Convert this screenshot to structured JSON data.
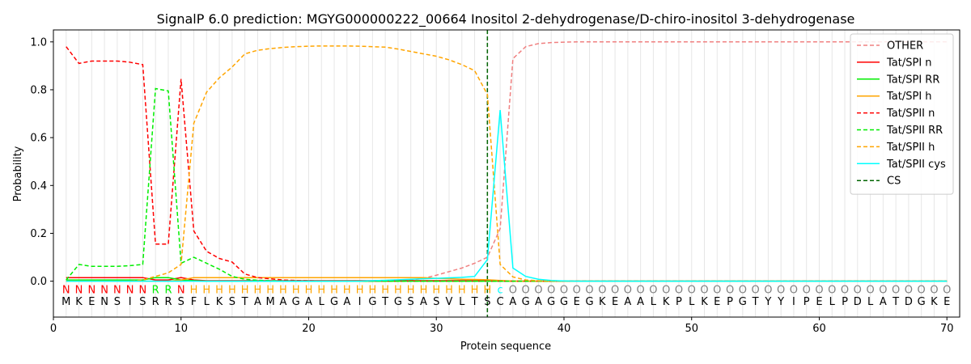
{
  "chart_data": {
    "type": "line",
    "title": "SignalP 6.0 prediction: MGYG000000222_00664 Inositol 2-dehydrogenase/D-chiro-inositol 3-dehydrogenase",
    "xlabel": "Protein sequence",
    "ylabel": "Probability",
    "xlim": [
      0,
      71
    ],
    "ylim": [
      -0.15,
      1.05
    ],
    "xticks": [
      0,
      10,
      20,
      30,
      40,
      50,
      60,
      70
    ],
    "yticks": [
      0.0,
      0.2,
      0.4,
      0.6,
      0.8,
      1.0
    ],
    "grid": "vertical lines at each residue",
    "legend_position": "top-right",
    "sequence": [
      "M",
      "K",
      "E",
      "N",
      "S",
      "I",
      "S",
      "R",
      "R",
      "S",
      "F",
      "L",
      "K",
      "S",
      "T",
      "A",
      "M",
      "A",
      "G",
      "A",
      "L",
      "G",
      "A",
      "I",
      "G",
      "T",
      "G",
      "S",
      "A",
      "S",
      "V",
      "L",
      "T",
      "S",
      "C",
      "A",
      "G",
      "A",
      "G",
      "G",
      "E",
      "G",
      "K",
      "E",
      "A",
      "A",
      "L",
      "K",
      "P",
      "L",
      "K",
      "E",
      "P",
      "G",
      "T",
      "Y",
      "Y",
      "I",
      "P",
      "E",
      "L",
      "P",
      "D",
      "L",
      "A",
      "T",
      "D",
      "G",
      "K",
      "E"
    ],
    "labels": [
      "N",
      "N",
      "N",
      "N",
      "N",
      "N",
      "N",
      "R",
      "R",
      "N",
      "H",
      "H",
      "H",
      "H",
      "H",
      "H",
      "H",
      "H",
      "H",
      "H",
      "H",
      "H",
      "H",
      "H",
      "H",
      "H",
      "H",
      "H",
      "H",
      "H",
      "H",
      "H",
      "H",
      "H",
      "c",
      "O",
      "O",
      "O",
      "O",
      "O",
      "O",
      "O",
      "O",
      "O",
      "O",
      "O",
      "O",
      "O",
      "O",
      "O",
      "O",
      "O",
      "O",
      "O",
      "O",
      "O",
      "O",
      "O",
      "O",
      "O",
      "O",
      "O",
      "O",
      "O",
      "O",
      "O",
      "O",
      "O",
      "O",
      "O"
    ],
    "label_colors": {
      "N": "#ff0000",
      "R": "#00ee00",
      "H": "#ffa500",
      "c": "#00ffff",
      "O": "#808080"
    },
    "cs_position": 34,
    "series": [
      {
        "name": "OTHER",
        "color": "#f08080",
        "dash": "dashed",
        "values": [
          0.0,
          0.0,
          0.0,
          0.0,
          0.0,
          0.0,
          0.0,
          0.0,
          0.0,
          0.0,
          0.0,
          0.0,
          0.0,
          0.0,
          0.0,
          0.0,
          0.0,
          0.0,
          0.0,
          0.0,
          0.0,
          0.0,
          0.0,
          0.0,
          0.0,
          0.0,
          0.002,
          0.005,
          0.012,
          0.025,
          0.04,
          0.055,
          0.075,
          0.1,
          0.22,
          0.93,
          0.98,
          0.993,
          0.997,
          0.999,
          1.0,
          1.0,
          1.0,
          1.0,
          1.0,
          1.0,
          1.0,
          1.0,
          1.0,
          1.0,
          1.0,
          1.0,
          1.0,
          1.0,
          1.0,
          1.0,
          1.0,
          1.0,
          1.0,
          1.0,
          1.0,
          1.0,
          1.0,
          1.0,
          1.0,
          1.0,
          1.0,
          1.0,
          1.0,
          1.0
        ]
      },
      {
        "name": "Tat/SPI n",
        "color": "#ff0000",
        "dash": "solid",
        "values": [
          0.015,
          0.015,
          0.015,
          0.015,
          0.015,
          0.015,
          0.015,
          0.005,
          0.005,
          0.015,
          0.005,
          0.002,
          0.002,
          0.002,
          0.002,
          0.002,
          0.002,
          0.002,
          0.002,
          0.002,
          0.002,
          0.002,
          0.002,
          0.002,
          0.002,
          0.002,
          0.002,
          0.002,
          0.002,
          0.002,
          0.002,
          0.002,
          0.002,
          0.002,
          0.002,
          0.0,
          0.0,
          0.0,
          0.0,
          0.0,
          0.0,
          0.0,
          0.0,
          0.0,
          0.0,
          0.0,
          0.0,
          0.0,
          0.0,
          0.0,
          0.0,
          0.0,
          0.0,
          0.0,
          0.0,
          0.0,
          0.0,
          0.0,
          0.0,
          0.0,
          0.0,
          0.0,
          0.0,
          0.0,
          0.0,
          0.0,
          0.0,
          0.0,
          0.0,
          0.0
        ]
      },
      {
        "name": "Tat/SPI RR",
        "color": "#00ee00",
        "dash": "solid",
        "values": [
          0.005,
          0.005,
          0.005,
          0.005,
          0.005,
          0.005,
          0.005,
          0.015,
          0.015,
          0.005,
          0.002,
          0.0,
          0.0,
          0.0,
          0.0,
          0.0,
          0.0,
          0.0,
          0.0,
          0.0,
          0.0,
          0.0,
          0.0,
          0.0,
          0.0,
          0.0,
          0.0,
          0.0,
          0.0,
          0.0,
          0.0,
          0.0,
          0.0,
          0.0,
          0.0,
          0.0,
          0.0,
          0.0,
          0.0,
          0.0,
          0.0,
          0.0,
          0.0,
          0.0,
          0.0,
          0.0,
          0.0,
          0.0,
          0.0,
          0.0,
          0.0,
          0.0,
          0.0,
          0.0,
          0.0,
          0.0,
          0.0,
          0.0,
          0.0,
          0.0,
          0.0,
          0.0,
          0.0,
          0.0,
          0.0,
          0.0,
          0.0,
          0.0,
          0.0,
          0.0
        ]
      },
      {
        "name": "Tat/SPI h",
        "color": "#ffa500",
        "dash": "solid",
        "values": [
          0.0,
          0.0,
          0.0,
          0.0,
          0.0,
          0.0,
          0.0,
          0.0,
          0.0,
          0.005,
          0.015,
          0.015,
          0.015,
          0.015,
          0.015,
          0.015,
          0.015,
          0.015,
          0.015,
          0.015,
          0.015,
          0.015,
          0.015,
          0.015,
          0.015,
          0.015,
          0.015,
          0.015,
          0.015,
          0.012,
          0.01,
          0.008,
          0.007,
          0.006,
          0.003,
          0.0,
          0.0,
          0.0,
          0.0,
          0.0,
          0.0,
          0.0,
          0.0,
          0.0,
          0.0,
          0.0,
          0.0,
          0.0,
          0.0,
          0.0,
          0.0,
          0.0,
          0.0,
          0.0,
          0.0,
          0.0,
          0.0,
          0.0,
          0.0,
          0.0,
          0.0,
          0.0,
          0.0,
          0.0,
          0.0,
          0.0,
          0.0,
          0.0,
          0.0,
          0.0
        ]
      },
      {
        "name": "Tat/SPII n",
        "color": "#ff0000",
        "dash": "dashed",
        "values": [
          0.98,
          0.91,
          0.92,
          0.92,
          0.92,
          0.915,
          0.905,
          0.155,
          0.155,
          0.845,
          0.21,
          0.125,
          0.095,
          0.08,
          0.03,
          0.015,
          0.01,
          0.005,
          0.003,
          0.002,
          0.001,
          0.0,
          0.0,
          0.0,
          0.0,
          0.0,
          0.0,
          0.0,
          0.0,
          0.0,
          0.0,
          0.0,
          0.0,
          0.0,
          0.0,
          0.0,
          0.0,
          0.0,
          0.0,
          0.0,
          0.0,
          0.0,
          0.0,
          0.0,
          0.0,
          0.0,
          0.0,
          0.0,
          0.0,
          0.0,
          0.0,
          0.0,
          0.0,
          0.0,
          0.0,
          0.0,
          0.0,
          0.0,
          0.0,
          0.0,
          0.0,
          0.0,
          0.0,
          0.0,
          0.0,
          0.0,
          0.0,
          0.0,
          0.0,
          0.0
        ]
      },
      {
        "name": "Tat/SPII RR",
        "color": "#00ee00",
        "dash": "dashed",
        "values": [
          0.005,
          0.07,
          0.062,
          0.062,
          0.062,
          0.065,
          0.07,
          0.805,
          0.795,
          0.075,
          0.1,
          0.075,
          0.05,
          0.02,
          0.008,
          0.004,
          0.002,
          0.001,
          0.0,
          0.0,
          0.0,
          0.0,
          0.0,
          0.0,
          0.0,
          0.0,
          0.0,
          0.0,
          0.0,
          0.0,
          0.0,
          0.0,
          0.0,
          0.0,
          0.0,
          0.0,
          0.0,
          0.0,
          0.0,
          0.0,
          0.0,
          0.0,
          0.0,
          0.0,
          0.0,
          0.0,
          0.0,
          0.0,
          0.0,
          0.0,
          0.0,
          0.0,
          0.0,
          0.0,
          0.0,
          0.0,
          0.0,
          0.0,
          0.0,
          0.0,
          0.0,
          0.0,
          0.0,
          0.0,
          0.0,
          0.0,
          0.0,
          0.0,
          0.0,
          0.0
        ]
      },
      {
        "name": "Tat/SPII h",
        "color": "#ffa500",
        "dash": "dashed",
        "values": [
          0.0,
          0.0,
          0.0,
          0.0,
          0.0,
          0.0,
          0.005,
          0.02,
          0.035,
          0.07,
          0.66,
          0.79,
          0.85,
          0.895,
          0.95,
          0.965,
          0.972,
          0.977,
          0.98,
          0.982,
          0.983,
          0.983,
          0.983,
          0.982,
          0.98,
          0.978,
          0.97,
          0.96,
          0.95,
          0.94,
          0.925,
          0.905,
          0.88,
          0.78,
          0.07,
          0.018,
          0.005,
          0.002,
          0.001,
          0.0,
          0.0,
          0.0,
          0.0,
          0.0,
          0.0,
          0.0,
          0.0,
          0.0,
          0.0,
          0.0,
          0.0,
          0.0,
          0.0,
          0.0,
          0.0,
          0.0,
          0.0,
          0.0,
          0.0,
          0.0,
          0.0,
          0.0,
          0.0,
          0.0,
          0.0,
          0.0,
          0.0,
          0.0,
          0.0,
          0.0
        ]
      },
      {
        "name": "Tat/SPII cys",
        "color": "#00ffff",
        "dash": "solid",
        "values": [
          0.0,
          0.0,
          0.0,
          0.0,
          0.0,
          0.0,
          0.0,
          0.0,
          0.0,
          0.0,
          0.0,
          0.0,
          0.0,
          0.0,
          0.0,
          0.0,
          0.0,
          0.0,
          0.0,
          0.0,
          0.0,
          0.0,
          0.0,
          0.0,
          0.002,
          0.004,
          0.006,
          0.008,
          0.01,
          0.012,
          0.014,
          0.016,
          0.02,
          0.09,
          0.715,
          0.055,
          0.02,
          0.008,
          0.003,
          0.001,
          0.0,
          0.0,
          0.0,
          0.0,
          0.0,
          0.0,
          0.0,
          0.0,
          0.0,
          0.0,
          0.0,
          0.0,
          0.0,
          0.0,
          0.0,
          0.0,
          0.0,
          0.0,
          0.0,
          0.0,
          0.0,
          0.0,
          0.0,
          0.0,
          0.0,
          0.0,
          0.0,
          0.0,
          0.0,
          0.0
        ]
      }
    ],
    "cs_legend": {
      "name": "CS",
      "color": "#006400",
      "dash": "dashed"
    }
  }
}
